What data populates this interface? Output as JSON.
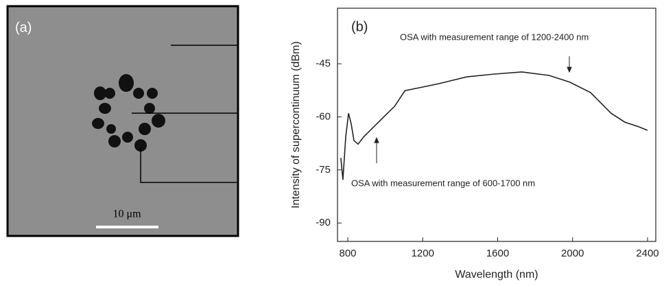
{
  "panel_a": {
    "label": "(a)",
    "scale_bar": "10 μm"
  },
  "chart_data": {
    "type": "line",
    "panel_label": "(b)",
    "x_label": "Wavelength (nm)",
    "y_label": "Intensity of supercontinuum (dBm)",
    "annotations": [
      "OSA with measurement range of 1200-2400 nm",
      "OSA with measurement range of 600-1700 nm"
    ],
    "x": [
      763,
      774,
      789,
      804,
      818,
      833,
      855,
      884,
      939,
      994,
      1050,
      1105,
      1178,
      1288,
      1435,
      1582,
      1728,
      1875,
      1985,
      2095,
      2206,
      2279,
      2352,
      2400
    ],
    "series": [
      {
        "color": "#222222",
        "values": [
          -71.6,
          -77.8,
          -65.7,
          -59.0,
          -61.9,
          -66.7,
          -67.7,
          -65.7,
          -62.8,
          -59.9,
          -57.0,
          -52.6,
          -51.8,
          -50.6,
          -48.7,
          -47.9,
          -47.3,
          -48.3,
          -50.2,
          -53.1,
          -59.0,
          -61.5,
          -62.8,
          -63.8
        ]
      }
    ],
    "xlim": [
      745,
      2444
    ],
    "xticks": [
      800,
      1200,
      1600,
      2000,
      2400
    ],
    "ylim": [
      -95.2,
      -29.3
    ],
    "yticks": [
      -45,
      -60,
      -75,
      -90
    ]
  }
}
